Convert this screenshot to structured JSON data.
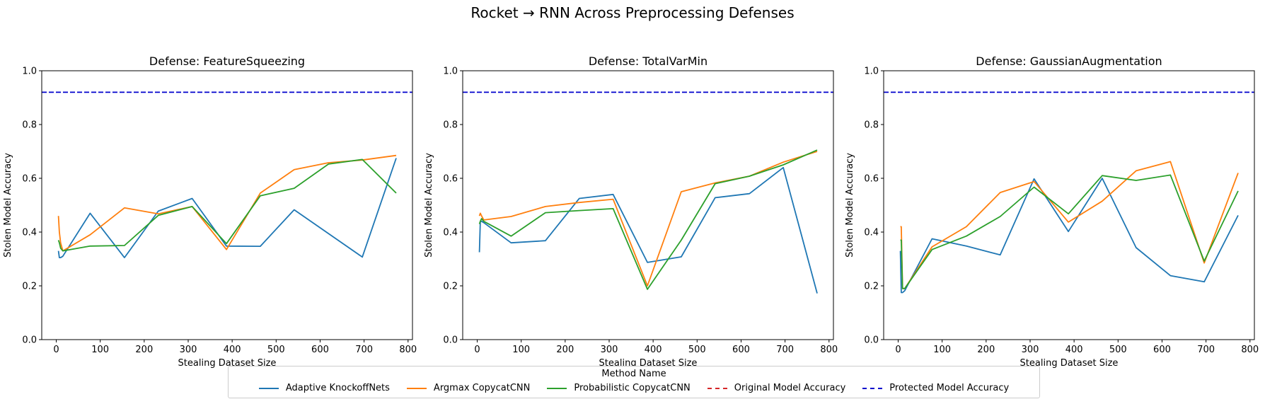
{
  "suptitle": "Rocket → RNN Across Preprocessing Defenses",
  "legend": {
    "title": "Method Name",
    "items": [
      {
        "label": "Adaptive KnockoffNets",
        "color": "#1f77b4",
        "style": "solid"
      },
      {
        "label": "Argmax CopycatCNN",
        "color": "#ff7f0e",
        "style": "solid"
      },
      {
        "label": "Probabilistic CopycatCNN",
        "color": "#2ca02c",
        "style": "solid"
      },
      {
        "label": "Original Model Accuracy",
        "color": "#d62728",
        "style": "dashed"
      },
      {
        "label": "Protected Model Accuracy",
        "color": "#0000cc",
        "style": "dashed"
      }
    ]
  },
  "chart_data": [
    {
      "type": "line",
      "title": "Defense: FeatureSqueezing",
      "xlabel": "Stealing Dataset Size",
      "ylabel": "Stolen Model Accuracy",
      "xlim": [
        -33,
        810
      ],
      "ylim": [
        0,
        1.0
      ],
      "xticks": [
        0,
        100,
        200,
        300,
        400,
        500,
        600,
        700,
        800
      ],
      "yticks": [
        0.0,
        0.2,
        0.4,
        0.6,
        0.8,
        1.0
      ],
      "protected_accuracy": 0.92,
      "grid": false,
      "series": [
        {
          "name": "Adaptive KnockoffNets",
          "color": "#1f77b4",
          "x": [
            5,
            7,
            10,
            15,
            77,
            155,
            232,
            309,
            387,
            464,
            541,
            696,
            773
          ],
          "y": [
            0.33,
            0.305,
            0.305,
            0.31,
            0.47,
            0.305,
            0.478,
            0.525,
            0.348,
            0.347,
            0.483,
            0.307,
            0.675
          ]
        },
        {
          "name": "Argmax CopycatCNN",
          "color": "#ff7f0e",
          "x": [
            5,
            7,
            10,
            15,
            77,
            155,
            232,
            309,
            387,
            464,
            541,
            619,
            696,
            773
          ],
          "y": [
            0.46,
            0.4,
            0.36,
            0.33,
            0.39,
            0.49,
            0.468,
            0.495,
            0.335,
            0.545,
            0.632,
            0.658,
            0.668,
            0.685
          ]
        },
        {
          "name": "Probabilistic CopycatCNN",
          "color": "#2ca02c",
          "x": [
            5,
            7,
            10,
            15,
            77,
            155,
            232,
            309,
            387,
            464,
            541,
            619,
            696,
            773
          ],
          "y": [
            0.37,
            0.36,
            0.34,
            0.33,
            0.348,
            0.35,
            0.462,
            0.495,
            0.357,
            0.535,
            0.563,
            0.653,
            0.67,
            0.545
          ]
        }
      ]
    },
    {
      "type": "line",
      "title": "Defense: TotalVarMin",
      "xlabel": "Stealing Dataset Size",
      "ylabel": "Stolen Model Accuracy",
      "xlim": [
        -33,
        810
      ],
      "ylim": [
        0,
        1.0
      ],
      "xticks": [
        0,
        100,
        200,
        300,
        400,
        500,
        600,
        700,
        800
      ],
      "yticks": [
        0.0,
        0.2,
        0.4,
        0.6,
        0.8,
        1.0
      ],
      "protected_accuracy": 0.92,
      "grid": false,
      "series": [
        {
          "name": "Adaptive KnockoffNets",
          "color": "#1f77b4",
          "x": [
            5,
            7,
            10,
            15,
            77,
            155,
            232,
            309,
            387,
            464,
            541,
            619,
            696,
            773
          ],
          "y": [
            0.325,
            0.44,
            0.44,
            0.435,
            0.36,
            0.368,
            0.525,
            0.54,
            0.287,
            0.308,
            0.528,
            0.543,
            0.64,
            0.172
          ]
        },
        {
          "name": "Argmax CopycatCNN",
          "color": "#ff7f0e",
          "x": [
            5,
            7,
            10,
            15,
            77,
            155,
            232,
            309,
            387,
            464,
            541,
            619,
            696,
            773
          ],
          "y": [
            0.46,
            0.47,
            0.46,
            0.445,
            0.458,
            0.495,
            0.51,
            0.522,
            0.2,
            0.55,
            0.583,
            0.608,
            0.66,
            0.7
          ]
        },
        {
          "name": "Probabilistic CopycatCNN",
          "color": "#2ca02c",
          "x": [
            5,
            7,
            10,
            15,
            77,
            155,
            232,
            309,
            387,
            464,
            541,
            619,
            696,
            773
          ],
          "y": [
            0.43,
            0.44,
            0.45,
            0.44,
            0.385,
            0.472,
            0.48,
            0.487,
            0.187,
            0.37,
            0.58,
            0.608,
            0.65,
            0.705
          ]
        }
      ]
    },
    {
      "type": "line",
      "title": "Defense: GaussianAugmentation",
      "xlabel": "Stealing Dataset Size",
      "ylabel": "Stolen Model Accuracy",
      "xlim": [
        -33,
        810
      ],
      "ylim": [
        0,
        1.0
      ],
      "xticks": [
        0,
        100,
        200,
        300,
        400,
        500,
        600,
        700,
        800
      ],
      "yticks": [
        0.0,
        0.2,
        0.4,
        0.6,
        0.8,
        1.0
      ],
      "protected_accuracy": 0.92,
      "grid": false,
      "series": [
        {
          "name": "Adaptive KnockoffNets",
          "color": "#1f77b4",
          "x": [
            5,
            7,
            10,
            15,
            77,
            155,
            232,
            309,
            387,
            464,
            541,
            619,
            696,
            773
          ],
          "y": [
            0.33,
            0.175,
            0.175,
            0.182,
            0.375,
            0.348,
            0.315,
            0.598,
            0.402,
            0.6,
            0.342,
            0.238,
            0.215,
            0.462
          ]
        },
        {
          "name": "Argmax CopycatCNN",
          "color": "#ff7f0e",
          "x": [
            5,
            7,
            10,
            15,
            77,
            155,
            232,
            309,
            387,
            464,
            541,
            619,
            696,
            773
          ],
          "y": [
            0.42,
            0.42,
            0.19,
            0.19,
            0.345,
            0.42,
            0.547,
            0.588,
            0.437,
            0.515,
            0.628,
            0.662,
            0.285,
            0.62
          ]
        },
        {
          "name": "Probabilistic CopycatCNN",
          "color": "#2ca02c",
          "x": [
            5,
            7,
            10,
            15,
            77,
            155,
            232,
            309,
            387,
            464,
            541,
            619,
            696,
            773
          ],
          "y": [
            0.37,
            0.37,
            0.19,
            0.19,
            0.335,
            0.385,
            0.458,
            0.567,
            0.468,
            0.61,
            0.592,
            0.612,
            0.292,
            0.553
          ]
        }
      ]
    }
  ]
}
